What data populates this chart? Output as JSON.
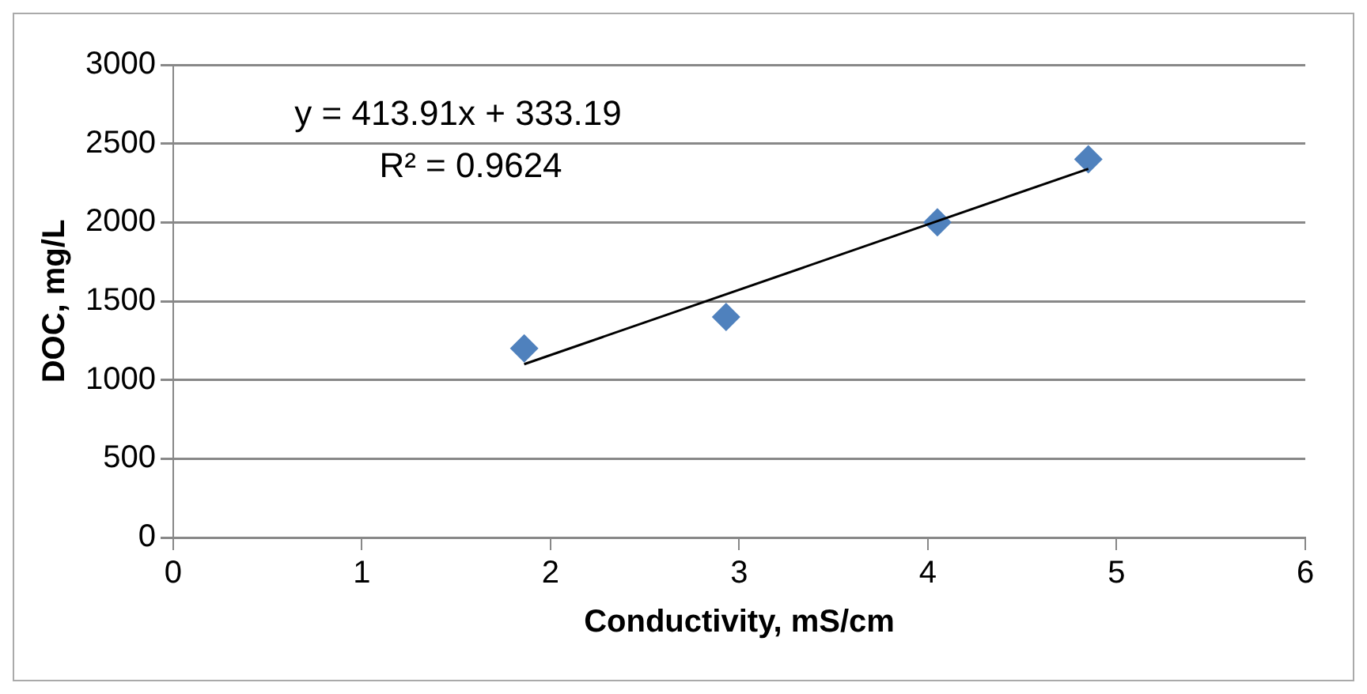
{
  "chart_data": {
    "type": "scatter",
    "xlabel": "Conductivity, mS/cm",
    "ylabel": "DOC, mg/L",
    "xlim": [
      0,
      6
    ],
    "xticks": [
      0,
      1,
      2,
      3,
      4,
      5,
      6
    ],
    "ylim": [
      0,
      3000
    ],
    "yticks": [
      0,
      500,
      1000,
      1500,
      2000,
      2500,
      3000
    ],
    "grid": "y",
    "legend": false,
    "series": [
      {
        "type": "scatter",
        "color": "#4f81bd",
        "marker": "diamond",
        "x": [
          1.86,
          2.93,
          4.05,
          4.85
        ],
        "values": [
          1200,
          1400,
          2000,
          2400
        ]
      },
      {
        "type": "line",
        "color": "#000000",
        "marker": "none",
        "line_style": "solid",
        "x": [
          1.86,
          4.85
        ],
        "values": [
          1100,
          2340
        ]
      }
    ],
    "annotations": [
      "y = 413.91x + 333.19",
      "R² = 0.9624"
    ]
  }
}
